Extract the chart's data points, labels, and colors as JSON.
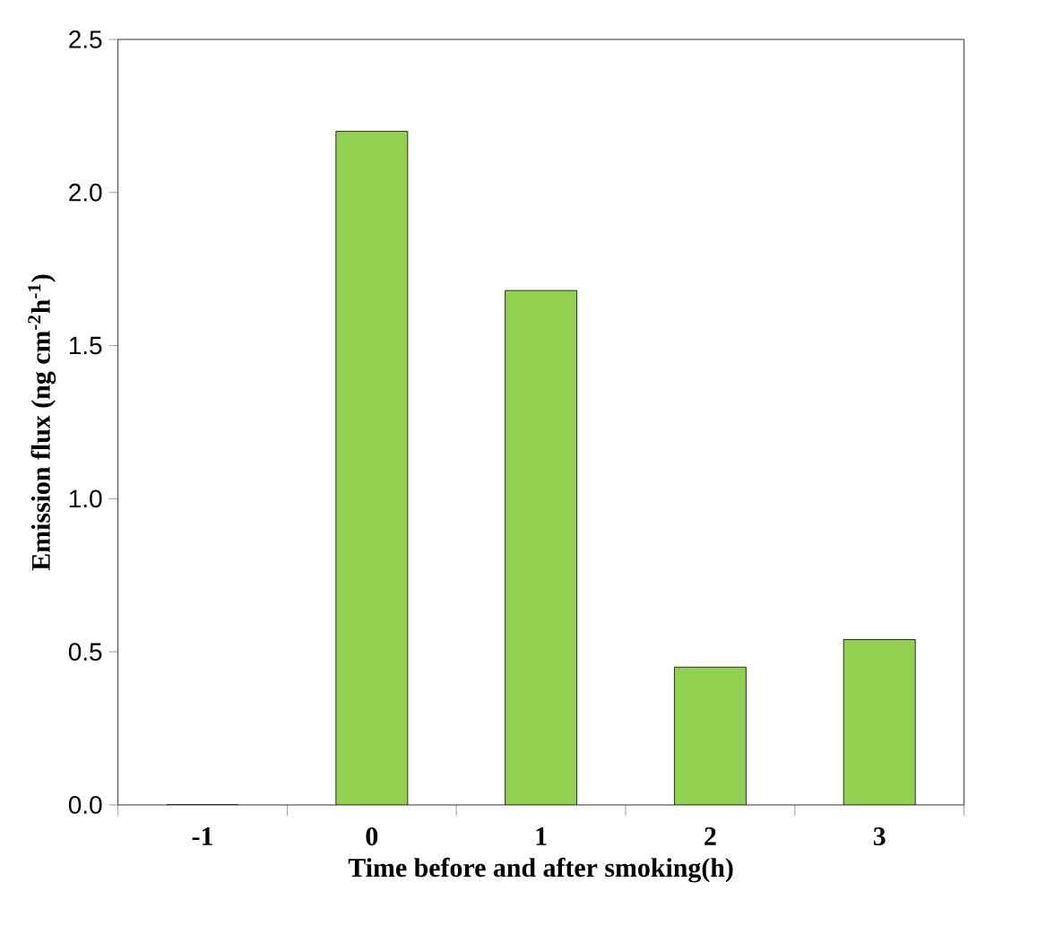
{
  "chart_data": {
    "type": "bar",
    "xlabel": "Time before and after smoking(h)",
    "ylabel": "Emission flux (ng cm$^{-2}$h$^{-1}$)",
    "categories": [
      "-1",
      "0",
      "1",
      "2",
      "3"
    ],
    "values": [
      0,
      2.2,
      1.68,
      0.45,
      0.54
    ],
    "color": "#92d050",
    "ylim": [
      0,
      2.5
    ],
    "yticks": [
      {
        "value": 0,
        "label": "0.0"
      },
      {
        "value": 0.5,
        "label": "0.5"
      },
      {
        "value": 1,
        "label": "1.0"
      },
      {
        "value": 1.5,
        "label": "1.5"
      },
      {
        "value": 2,
        "label": "2.0"
      },
      {
        "value": 2.5,
        "label": "2.5"
      }
    ]
  }
}
